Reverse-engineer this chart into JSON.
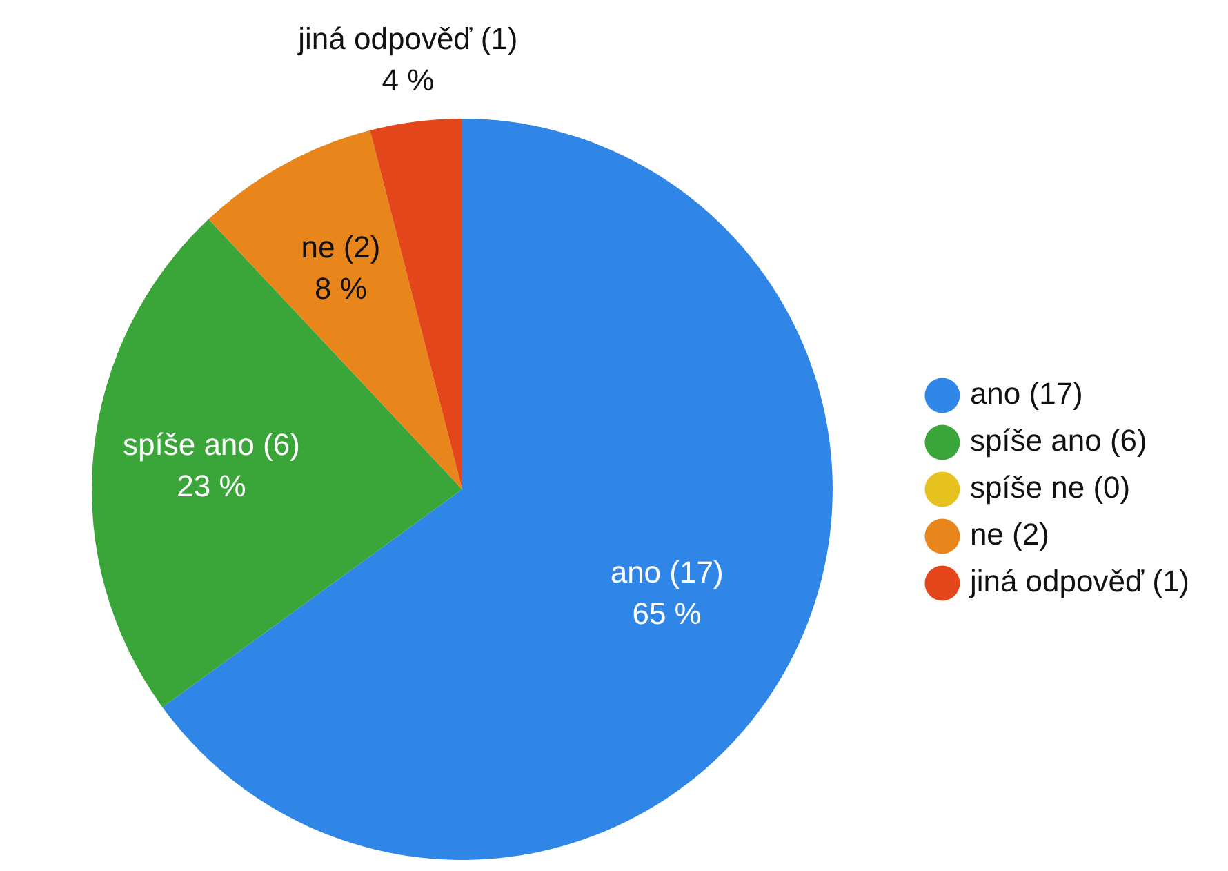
{
  "chart_data": {
    "type": "pie",
    "categories": [
      "ano (17)",
      "spíše ano (6)",
      "spíše ne (0)",
      "ne (2)",
      "jiná odpověď (1)"
    ],
    "values": [
      65,
      23,
      0,
      8,
      4
    ],
    "value_labels": [
      "65 %",
      "23 %",
      null,
      "8 %",
      "4 %"
    ],
    "colors": [
      "#2f86e6",
      "#3aa63a",
      "#e6c21e",
      "#e8861c",
      "#e2461a"
    ],
    "legend": "right"
  }
}
